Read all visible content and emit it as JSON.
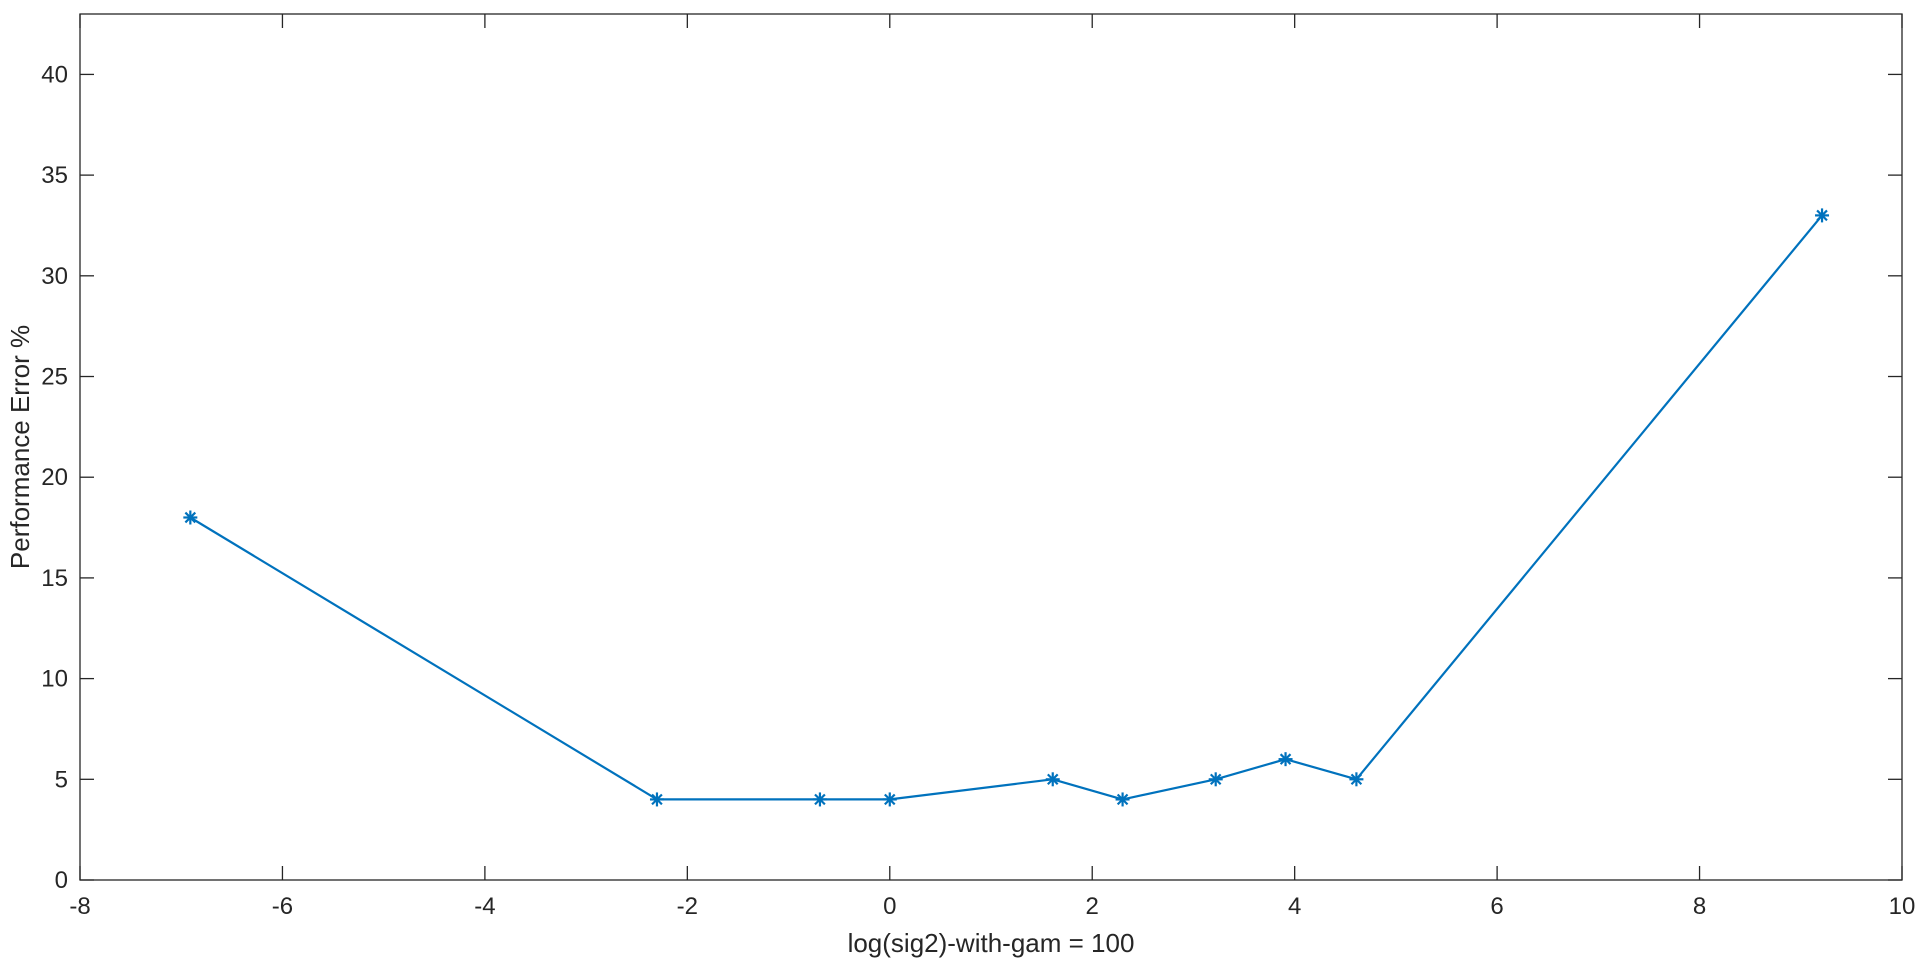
{
  "chart_data": {
    "type": "line",
    "xlabel": "log(sig2)-with-gam = 100",
    "ylabel": "Performance Error %",
    "xlim": [
      -8,
      10
    ],
    "ylim": [
      0,
      43
    ],
    "xticks": [
      "-8",
      "-6",
      "-4",
      "-2",
      "0",
      "2",
      "4",
      "6",
      "8",
      "10"
    ],
    "yticks": [
      "0",
      "5",
      "10",
      "15",
      "20",
      "25",
      "30",
      "35",
      "40"
    ],
    "grid": false,
    "series": [
      {
        "color": "#0072BD",
        "marker": "asterisk",
        "x": [
          -6.91,
          -2.3,
          -0.69,
          0.0,
          1.61,
          2.3,
          3.22,
          3.91,
          4.61,
          9.21
        ],
        "y": [
          18,
          4,
          4,
          4,
          5,
          4,
          5,
          6,
          5,
          33
        ]
      }
    ]
  }
}
